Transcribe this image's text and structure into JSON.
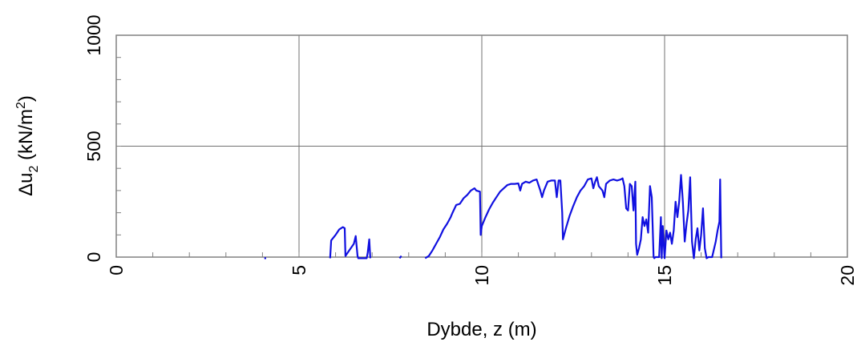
{
  "chart_data": {
    "type": "line",
    "title": "",
    "xlabel": "Dybde, z (m)",
    "ylabel": "Δu",
    "ylabel_sub": "2",
    "ylabel_unit_pre": " (kN/m",
    "ylabel_unit_sup": "2",
    "ylabel_unit_post": ")",
    "xlim": [
      0,
      20
    ],
    "ylim": [
      0,
      1000
    ],
    "xticks": [
      0,
      5,
      10,
      15,
      20
    ],
    "yticks": [
      0,
      500,
      1000
    ],
    "grid": true,
    "legend": "none",
    "line_color": "#1010e0",
    "series": [
      {
        "segments": [
          [
            [
              4.05,
              -5
            ],
            [
              4.1,
              -5
            ]
          ],
          [
            [
              5.85,
              -5
            ],
            [
              5.88,
              75
            ],
            [
              6.0,
              100
            ],
            [
              6.1,
              125
            ],
            [
              6.2,
              135
            ],
            [
              6.25,
              130
            ],
            [
              6.27,
              5
            ],
            [
              6.35,
              25
            ],
            [
              6.5,
              60
            ],
            [
              6.55,
              95
            ],
            [
              6.6,
              5
            ],
            [
              6.62,
              -5
            ],
            [
              6.85,
              -5
            ],
            [
              6.88,
              20
            ],
            [
              6.92,
              80
            ],
            [
              6.95,
              -5
            ]
          ],
          [
            [
              7.75,
              -5
            ],
            [
              7.8,
              5
            ]
          ],
          [
            [
              8.45,
              -5
            ],
            [
              8.55,
              5
            ],
            [
              8.65,
              30
            ],
            [
              8.75,
              60
            ],
            [
              8.85,
              90
            ],
            [
              8.95,
              125
            ],
            [
              9.05,
              150
            ],
            [
              9.15,
              180
            ],
            [
              9.2,
              200
            ],
            [
              9.3,
              235
            ],
            [
              9.4,
              240
            ],
            [
              9.5,
              265
            ],
            [
              9.6,
              280
            ],
            [
              9.7,
              300
            ],
            [
              9.8,
              310
            ],
            [
              9.85,
              300
            ],
            [
              9.95,
              295
            ],
            [
              9.97,
              100
            ],
            [
              10.0,
              140
            ],
            [
              10.1,
              180
            ],
            [
              10.2,
              215
            ],
            [
              10.3,
              245
            ],
            [
              10.4,
              270
            ],
            [
              10.5,
              295
            ],
            [
              10.6,
              310
            ],
            [
              10.7,
              325
            ],
            [
              10.8,
              330
            ],
            [
              10.9,
              330
            ],
            [
              11.0,
              332
            ],
            [
              11.05,
              300
            ],
            [
              11.1,
              330
            ],
            [
              11.2,
              340
            ],
            [
              11.3,
              335
            ],
            [
              11.4,
              345
            ],
            [
              11.5,
              350
            ],
            [
              11.6,
              300
            ],
            [
              11.65,
              270
            ],
            [
              11.7,
              300
            ],
            [
              11.8,
              340
            ],
            [
              11.9,
              345
            ],
            [
              12.0,
              345
            ],
            [
              12.05,
              270
            ],
            [
              12.1,
              345
            ],
            [
              12.15,
              345
            ],
            [
              12.2,
              200
            ],
            [
              12.22,
              80
            ],
            [
              12.3,
              130
            ],
            [
              12.4,
              185
            ],
            [
              12.5,
              230
            ],
            [
              12.6,
              270
            ],
            [
              12.7,
              300
            ],
            [
              12.8,
              320
            ],
            [
              12.9,
              350
            ],
            [
              13.0,
              355
            ],
            [
              13.05,
              310
            ],
            [
              13.1,
              340
            ],
            [
              13.15,
              360
            ],
            [
              13.2,
              320
            ],
            [
              13.3,
              300
            ],
            [
              13.35,
              270
            ],
            [
              13.4,
              330
            ],
            [
              13.5,
              345
            ],
            [
              13.6,
              350
            ],
            [
              13.7,
              345
            ],
            [
              13.8,
              350
            ],
            [
              13.85,
              355
            ],
            [
              13.9,
              320
            ],
            [
              13.95,
              220
            ],
            [
              14.0,
              210
            ],
            [
              14.05,
              330
            ],
            [
              14.1,
              320
            ],
            [
              14.15,
              210
            ],
            [
              14.2,
              340
            ],
            [
              14.22,
              60
            ],
            [
              14.25,
              10
            ],
            [
              14.3,
              40
            ],
            [
              14.35,
              80
            ],
            [
              14.4,
              180
            ],
            [
              14.45,
              140
            ],
            [
              14.5,
              170
            ],
            [
              14.55,
              110
            ],
            [
              14.6,
              320
            ],
            [
              14.65,
              270
            ],
            [
              14.7,
              0
            ],
            [
              14.72,
              -5
            ],
            [
              14.75,
              0
            ],
            [
              14.85,
              0
            ],
            [
              14.9,
              180
            ],
            [
              14.92,
              -5
            ],
            [
              14.95,
              140
            ],
            [
              15.0,
              -5
            ],
            [
              15.05,
              120
            ],
            [
              15.1,
              80
            ],
            [
              15.15,
              110
            ],
            [
              15.2,
              60
            ],
            [
              15.25,
              120
            ],
            [
              15.3,
              250
            ],
            [
              15.35,
              180
            ],
            [
              15.4,
              250
            ],
            [
              15.45,
              370
            ],
            [
              15.5,
              250
            ],
            [
              15.55,
              70
            ],
            [
              15.6,
              150
            ],
            [
              15.65,
              210
            ],
            [
              15.7,
              360
            ],
            [
              15.75,
              70
            ],
            [
              15.8,
              -5
            ],
            [
              15.85,
              80
            ],
            [
              15.9,
              130
            ],
            [
              15.95,
              30
            ],
            [
              16.0,
              100
            ],
            [
              16.05,
              220
            ],
            [
              16.1,
              40
            ],
            [
              16.15,
              -5
            ],
            [
              16.2,
              0
            ],
            [
              16.3,
              0
            ],
            [
              16.4,
              70
            ],
            [
              16.45,
              120
            ],
            [
              16.5,
              160
            ],
            [
              16.52,
              350
            ],
            [
              16.55,
              -5
            ]
          ]
        ]
      }
    ]
  }
}
